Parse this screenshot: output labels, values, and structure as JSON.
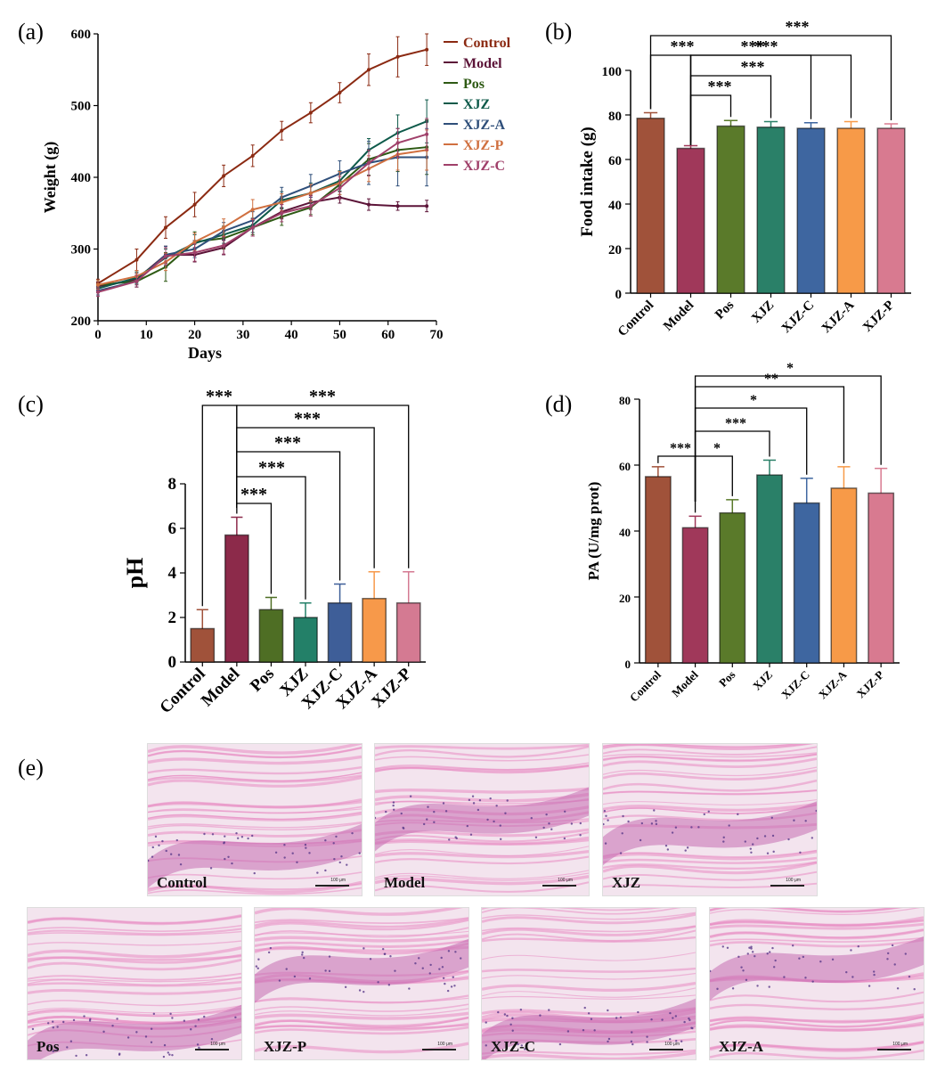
{
  "panel_labels": {
    "a": "(a)",
    "b": "(b)",
    "c": "(c)",
    "d": "(d)",
    "e": "(e)"
  },
  "chart_data": [
    {
      "type": "line",
      "xlabel": "Days",
      "ylabel": "Weight (g)",
      "xlim": [
        0,
        70
      ],
      "ylim": [
        200,
        600
      ],
      "xticks": [
        0,
        10,
        20,
        30,
        40,
        50,
        60,
        70
      ],
      "yticks": [
        200,
        300,
        400,
        500,
        600
      ],
      "x": [
        0,
        8,
        14,
        20,
        26,
        32,
        38,
        44,
        50,
        56,
        62,
        68
      ],
      "legend_position": "top-right",
      "series": [
        {
          "name": "Control",
          "color": "#8b2a12",
          "values": [
            252,
            285,
            330,
            362,
            402,
            430,
            465,
            490,
            518,
            550,
            568,
            578
          ],
          "err": [
            6,
            15,
            15,
            17,
            15,
            15,
            13,
            14,
            14,
            22,
            28,
            22
          ]
        },
        {
          "name": "Model",
          "color": "#5c1438",
          "values": [
            248,
            258,
            292,
            292,
            302,
            330,
            352,
            365,
            372,
            362,
            360,
            360
          ],
          "err": [
            6,
            8,
            12,
            10,
            10,
            12,
            10,
            10,
            8,
            8,
            6,
            8
          ]
        },
        {
          "name": "Pos",
          "color": "#2e5a14",
          "values": [
            250,
            255,
            275,
            310,
            315,
            330,
            345,
            358,
            390,
            425,
            438,
            442
          ],
          "err": [
            6,
            8,
            20,
            14,
            15,
            10,
            12,
            10,
            14,
            22,
            30,
            38
          ]
        },
        {
          "name": "XJZ",
          "color": "#0e5a4a",
          "values": [
            245,
            260,
            288,
            308,
            320,
            333,
            368,
            378,
            395,
            438,
            462,
            478
          ],
          "err": [
            6,
            8,
            12,
            12,
            12,
            10,
            12,
            14,
            14,
            16,
            25,
            30
          ]
        },
        {
          "name": "XJZ-A",
          "color": "#2f4f7a",
          "values": [
            242,
            255,
            292,
            300,
            325,
            340,
            372,
            388,
            405,
            420,
            428,
            428
          ],
          "err": [
            6,
            8,
            12,
            12,
            12,
            12,
            14,
            16,
            18,
            30,
            40,
            40
          ]
        },
        {
          "name": "XJZ-P",
          "color": "#d07040",
          "values": [
            250,
            262,
            282,
            310,
            330,
            355,
            365,
            378,
            392,
            412,
            432,
            438
          ],
          "err": [
            6,
            8,
            12,
            12,
            12,
            14,
            12,
            12,
            16,
            18,
            22,
            28
          ]
        },
        {
          "name": "XJZ-C",
          "color": "#a0406a",
          "values": [
            240,
            255,
            290,
            295,
            305,
            330,
            350,
            360,
            385,
            420,
            448,
            460
          ],
          "err": [
            6,
            8,
            12,
            12,
            12,
            12,
            12,
            14,
            16,
            18,
            20,
            22
          ]
        }
      ]
    },
    {
      "type": "bar",
      "ylabel": "Food intake (g)",
      "ylim": [
        0,
        100
      ],
      "yticks": [
        0,
        20,
        40,
        60,
        80,
        100
      ],
      "categories": [
        "Control",
        "Model",
        "Pos",
        "XJZ",
        "XJZ-C",
        "XJZ-A",
        "XJZ-P"
      ],
      "values": [
        78.5,
        65,
        75,
        74.5,
        74,
        74,
        74
      ],
      "err": [
        2.5,
        1.2,
        2.5,
        2.5,
        2.5,
        3,
        2
      ],
      "colors": [
        "#a0523a",
        "#a0385a",
        "#5a7a2a",
        "#2a8068",
        "#3e66a0",
        "#f79a48",
        "#d87a90"
      ],
      "significance": [
        {
          "from": 0,
          "to": 1,
          "label": "***"
        },
        {
          "from": 1,
          "to": 2,
          "label": "***"
        },
        {
          "from": 1,
          "to": 3,
          "label": "***"
        },
        {
          "from": 1,
          "to": 4,
          "label": "***"
        },
        {
          "from": 1,
          "to": 5,
          "label": "***"
        },
        {
          "from": 0,
          "to": 6,
          "label": "***"
        }
      ]
    },
    {
      "type": "bar",
      "ylabel": "pH",
      "ylim": [
        0,
        8
      ],
      "yticks": [
        0,
        2,
        4,
        6,
        8
      ],
      "categories": [
        "Control",
        "Model",
        "Pos",
        "XJZ",
        "XJZ-C",
        "XJZ-A",
        "XJZ-P"
      ],
      "values": [
        1.5,
        5.7,
        2.35,
        2.0,
        2.65,
        2.85,
        2.65
      ],
      "err": [
        0.85,
        0.8,
        0.55,
        0.65,
        0.85,
        1.2,
        1.4
      ],
      "colors": [
        "#a0523a",
        "#8c2a4a",
        "#4e6e24",
        "#238068",
        "#3e5e98",
        "#f7994a",
        "#d47a92"
      ],
      "significance": [
        {
          "from": 0,
          "to": 1,
          "label": "***"
        },
        {
          "from": 1,
          "to": 2,
          "label": "***"
        },
        {
          "from": 1,
          "to": 3,
          "label": "***"
        },
        {
          "from": 1,
          "to": 4,
          "label": "***"
        },
        {
          "from": 1,
          "to": 5,
          "label": "***"
        },
        {
          "from": 1,
          "to": 6,
          "label": "***"
        }
      ]
    },
    {
      "type": "bar",
      "ylabel": "PA (U/mg prot)",
      "ylim": [
        0,
        80
      ],
      "yticks": [
        0,
        20,
        40,
        60,
        80
      ],
      "categories": [
        "Control",
        "Model",
        "Pos",
        "XJZ",
        "XJZ-C",
        "XJZ-A",
        "XJZ-P"
      ],
      "values": [
        56.5,
        41,
        45.5,
        57,
        48.5,
        53,
        51.5
      ],
      "err": [
        3,
        3.5,
        4,
        4.5,
        7.5,
        6.5,
        7.5
      ],
      "colors": [
        "#a0523a",
        "#a0385a",
        "#5a7a2a",
        "#2a8068",
        "#3e66a0",
        "#f79a48",
        "#d87a90"
      ],
      "significance": [
        {
          "from": 0,
          "to": 1,
          "label": "***"
        },
        {
          "from": 1,
          "to": 2,
          "label": "*"
        },
        {
          "from": 1,
          "to": 3,
          "label": "***"
        },
        {
          "from": 1,
          "to": 4,
          "label": "*"
        },
        {
          "from": 1,
          "to": 5,
          "label": "**"
        },
        {
          "from": 1,
          "to": 6,
          "label": "*"
        }
      ]
    }
  ],
  "histology": {
    "labels": [
      "Control",
      "Model",
      "XJZ",
      "Pos",
      "XJZ-P",
      "XJZ-C",
      "XJZ-A"
    ],
    "scale_text": "100 μm",
    "colors": {
      "background": "#f3e4ee",
      "fiber": "#e88ac2",
      "dense": "#c56db3",
      "nuclei": "#5a3a8a"
    }
  }
}
